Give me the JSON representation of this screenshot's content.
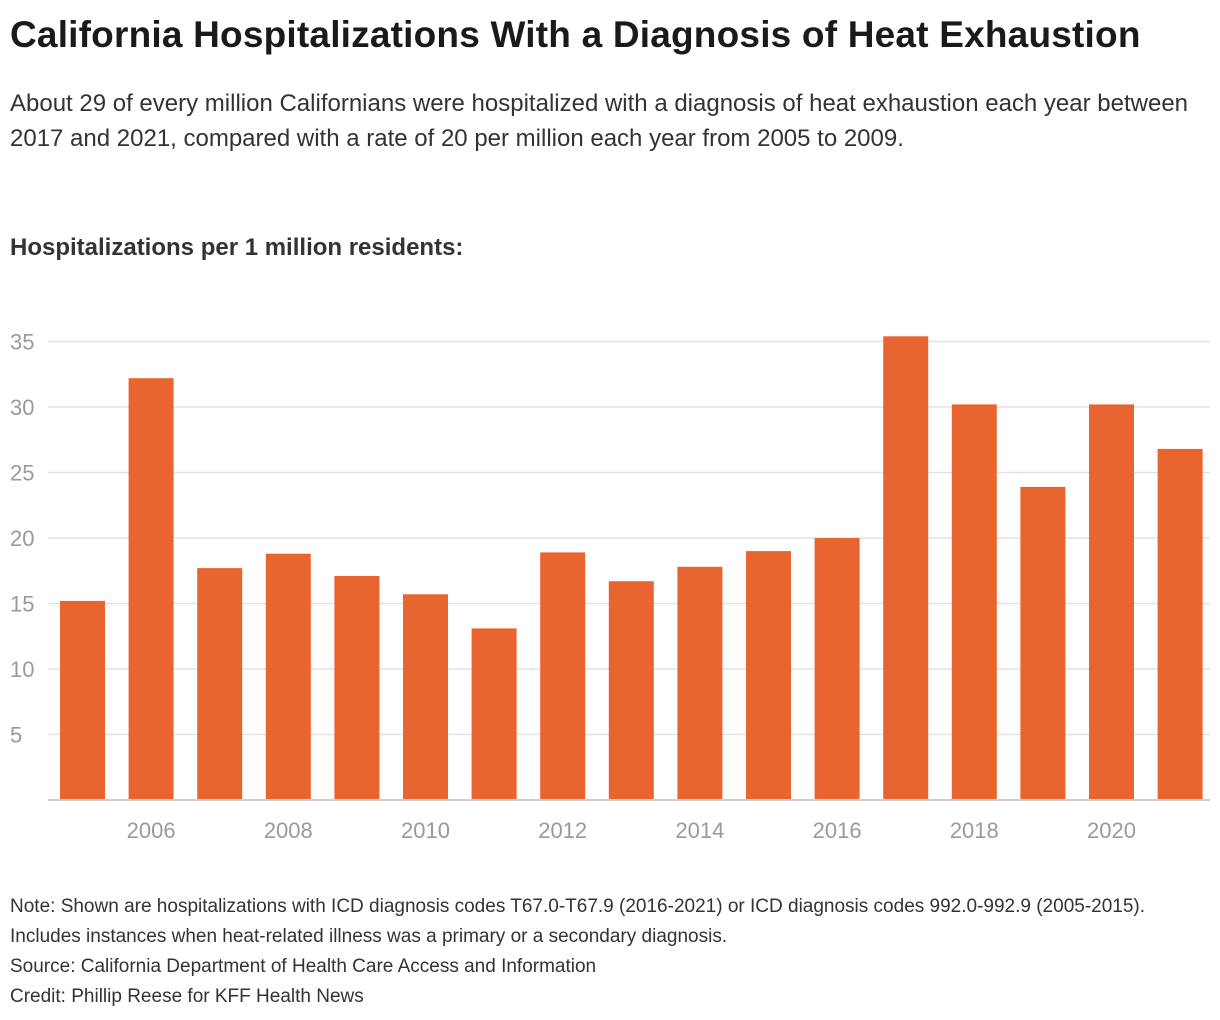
{
  "title": "California Hospitalizations With a Diagnosis of Heat Exhaustion",
  "subtitle": "About 29 of every million Californians were hospitalized with a diagnosis of heat exhaustion each year between 2017 and 2021, compared with a rate of 20 per million each year from 2005 to 2009.",
  "chart_heading": "Hospitalizations per 1 million residents:",
  "chart_data": {
    "type": "bar",
    "title": "Hospitalizations per 1 million residents:",
    "categories": [
      "2005",
      "2006",
      "2007",
      "2008",
      "2009",
      "2010",
      "2011",
      "2012",
      "2013",
      "2014",
      "2015",
      "2016",
      "2017",
      "2018",
      "2019",
      "2020",
      "2021"
    ],
    "values": [
      15.2,
      32.2,
      17.7,
      18.8,
      17.1,
      15.7,
      13.1,
      18.9,
      16.7,
      17.8,
      19.0,
      20.0,
      35.4,
      30.2,
      23.9,
      30.2,
      26.8
    ],
    "xticks": [
      "2006",
      "2008",
      "2010",
      "2012",
      "2014",
      "2016",
      "2018",
      "2020"
    ],
    "yticks": [
      "5",
      "10",
      "15",
      "20",
      "25",
      "30",
      "35"
    ],
    "ylim": [
      0,
      37
    ],
    "xlabel": "",
    "ylabel": "",
    "bar_color": "#e86530",
    "grid": true
  },
  "footer": {
    "note": "Note: Shown are hospitalizations with ICD diagnosis codes T67.0-T67.9 (2016-2021) or ICD diagnosis codes 992.0-992.9 (2005-2015). Includes instances when heat-related illness was a primary or a secondary diagnosis.",
    "source": "Source: California Department of Health Care Access and Information",
    "credit": "Credit: Phillip Reese for KFF Health News"
  }
}
